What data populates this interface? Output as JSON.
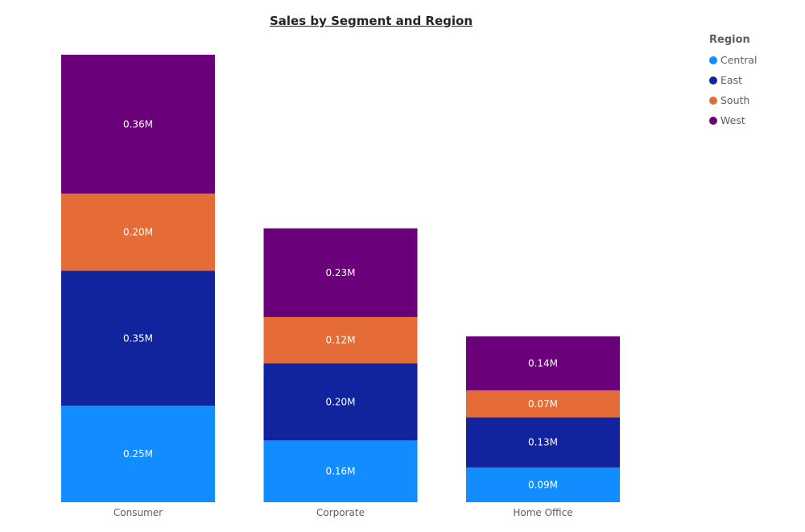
{
  "chart_data": {
    "type": "bar",
    "stacked": true,
    "title": "Sales by Segment and Region",
    "categories": [
      "Consumer",
      "Corporate",
      "Home Office"
    ],
    "legend": {
      "title": "Region",
      "placement": "top-right"
    },
    "series": [
      {
        "name": "Central",
        "color": "#118DFF",
        "values": [
          0.25,
          0.16,
          0.09
        ],
        "labels": [
          "0.25M",
          "0.16M",
          "0.09M"
        ]
      },
      {
        "name": "East",
        "color": "#12239E",
        "values": [
          0.35,
          0.2,
          0.13
        ],
        "labels": [
          "0.35M",
          "0.20M",
          "0.13M"
        ]
      },
      {
        "name": "South",
        "color": "#E66C37",
        "values": [
          0.2,
          0.12,
          0.07
        ],
        "labels": [
          "0.20M",
          "0.12M",
          "0.07M"
        ]
      },
      {
        "name": "West",
        "color": "#6B007B",
        "values": [
          0.36,
          0.23,
          0.14
        ],
        "labels": [
          "0.36M",
          "0.23M",
          "0.14M"
        ]
      }
    ],
    "units": "M",
    "ylim": [
      0,
      1.16
    ],
    "grid": false,
    "y_axis_visible": false
  }
}
